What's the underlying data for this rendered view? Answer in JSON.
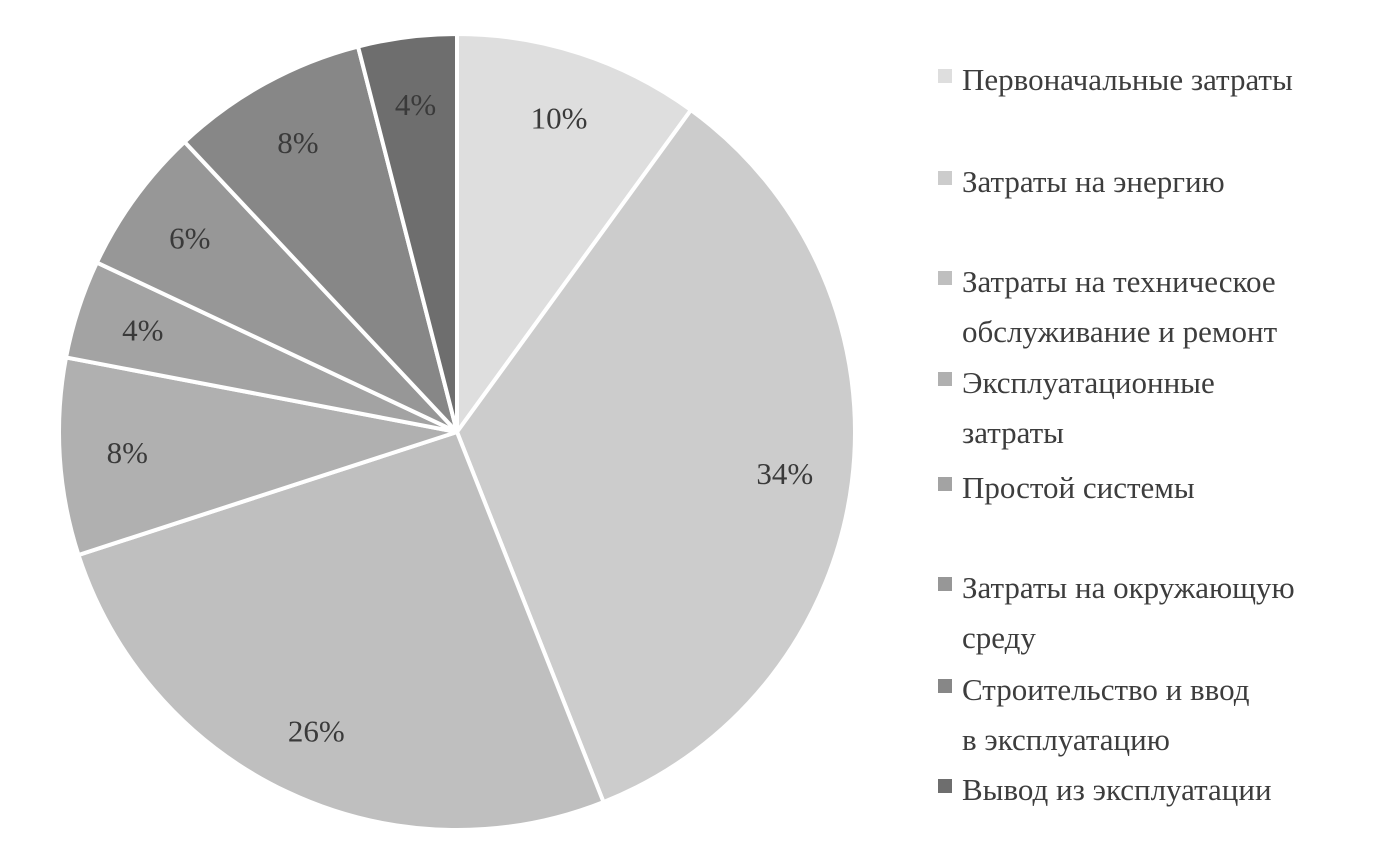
{
  "chart_data": {
    "type": "pie",
    "start_angle_deg": 0,
    "direction": "clockwise",
    "legend_position": "right",
    "slices": [
      {
        "label": "Первоначальные затраты",
        "value": 10,
        "display": "10%",
        "color": "#dedede"
      },
      {
        "label": "Затраты на энергию",
        "value": 34,
        "display": "34%",
        "color": "#cccccc"
      },
      {
        "label": "Затраты на техническое\nобслуживание и ремонт",
        "value": 26,
        "display": "26%",
        "color": "#bfbfbf"
      },
      {
        "label": "Эксплуатационные\nзатраты",
        "value": 8,
        "display": "8%",
        "color": "#b0b0b0"
      },
      {
        "label": "Простой системы",
        "value": 4,
        "display": "4%",
        "color": "#a3a3a3"
      },
      {
        "label": "Затраты на окружающую\nсреду",
        "value": 6,
        "display": "6%",
        "color": "#979797"
      },
      {
        "label": "Строительство и ввод\nв эксплуатацию",
        "value": 8,
        "display": "8%",
        "color": "#878787"
      },
      {
        "label": "Вывод из эксплуатации",
        "value": 4,
        "display": "4%",
        "color": "#6e6e6e"
      }
    ]
  }
}
